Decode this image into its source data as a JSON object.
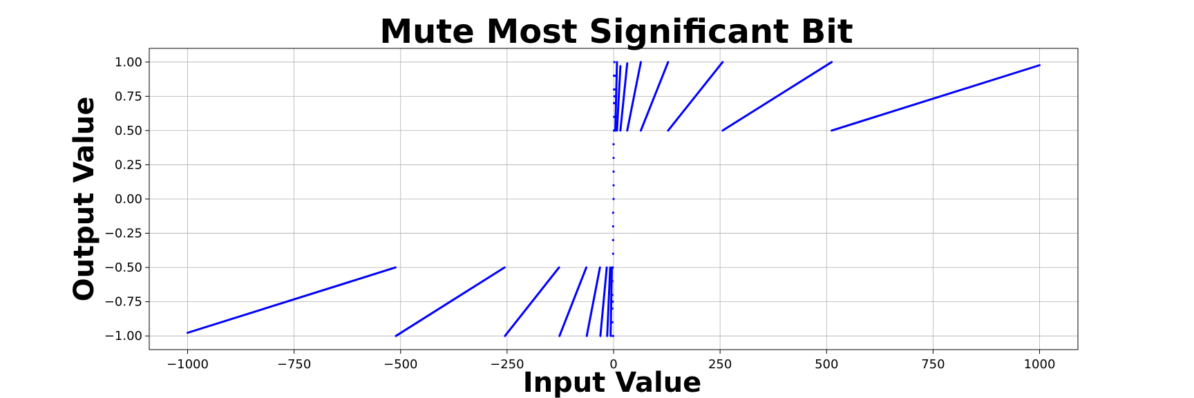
{
  "chart_data": {
    "type": "scatter",
    "title": "Mute Most Significant Bit",
    "xlabel": "Input Value",
    "ylabel": "Output Value",
    "xlim": [
      -1090,
      1090
    ],
    "ylim": [
      -1.1,
      1.1
    ],
    "xticks": [
      -1000,
      -750,
      -500,
      -250,
      0,
      250,
      500,
      750,
      1000
    ],
    "xtick_labels": [
      "−1000",
      "−750",
      "−500",
      "−250",
      "0",
      "250",
      "500",
      "750",
      "1000"
    ],
    "yticks": [
      1.0,
      0.75,
      0.5,
      0.25,
      0.0,
      -0.25,
      -0.5,
      -0.75,
      -1.0
    ],
    "ytick_labels": [
      "1.00",
      "0.75",
      "0.50",
      "0.25",
      "0.00",
      "−0.25",
      "−0.50",
      "−0.75",
      "−1.00"
    ],
    "grid": true,
    "color": "#0000ff",
    "series": [
      {
        "segments": [
          [
            [
              -1000,
              -0.977
            ],
            [
              -512,
              -0.5
            ]
          ],
          [
            [
              -511,
              -1.0
            ],
            [
              -256,
              -0.5
            ]
          ],
          [
            [
              -255,
              -1.0
            ],
            [
              -128,
              -0.5
            ]
          ],
          [
            [
              -127,
              -1.0
            ],
            [
              -64,
              -0.5
            ]
          ],
          [
            [
              -63,
              -1.0
            ],
            [
              -32,
              -0.5
            ]
          ],
          [
            [
              -31,
              -1.0
            ],
            [
              -16,
              -0.5
            ]
          ],
          [
            [
              -15,
              -1.0
            ],
            [
              -8,
              -0.5
            ]
          ],
          [
            [
              -7,
              -1.0
            ],
            [
              -4,
              -0.5
            ]
          ],
          [
            [
              4,
              0.5
            ],
            [
              8,
              1.0
            ]
          ],
          [
            [
              8,
              0.5
            ],
            [
              16,
              0.97
            ]
          ],
          [
            [
              16,
              0.5
            ],
            [
              32,
              0.99
            ]
          ],
          [
            [
              32,
              0.5
            ],
            [
              64,
              1.0
            ]
          ],
          [
            [
              64,
              0.5
            ],
            [
              128,
              1.0
            ]
          ],
          [
            [
              128,
              0.5
            ],
            [
              256,
              1.0
            ]
          ],
          [
            [
              256,
              0.5
            ],
            [
              512,
              1.0
            ]
          ],
          [
            [
              512,
              0.5
            ],
            [
              1000,
              0.977
            ]
          ]
        ],
        "points": [
          [
            -3,
            -0.9
          ],
          [
            -3,
            -0.8
          ],
          [
            -3,
            -0.7
          ],
          [
            -3,
            -0.6
          ],
          [
            -3,
            -0.5
          ],
          [
            -2,
            -1.0
          ],
          [
            -2,
            -0.75
          ],
          [
            -2,
            -0.5
          ],
          [
            -1,
            -1.0
          ],
          [
            -1,
            -0.4
          ],
          [
            -1,
            -0.3
          ],
          [
            -1,
            -0.2
          ],
          [
            -1,
            -0.1
          ],
          [
            0,
            0.0
          ],
          [
            0,
            0.1
          ],
          [
            0,
            0.2
          ],
          [
            0,
            0.3
          ],
          [
            0,
            0.4
          ],
          [
            1,
            0.5
          ],
          [
            1,
            0.6
          ],
          [
            1,
            0.7
          ],
          [
            1,
            0.8
          ],
          [
            1,
            0.9
          ],
          [
            2,
            0.5
          ],
          [
            2,
            0.75
          ],
          [
            2,
            1.0
          ],
          [
            3,
            0.5
          ],
          [
            3,
            0.6
          ],
          [
            3,
            0.7
          ],
          [
            3,
            0.8
          ],
          [
            3,
            0.9
          ]
        ]
      }
    ]
  }
}
